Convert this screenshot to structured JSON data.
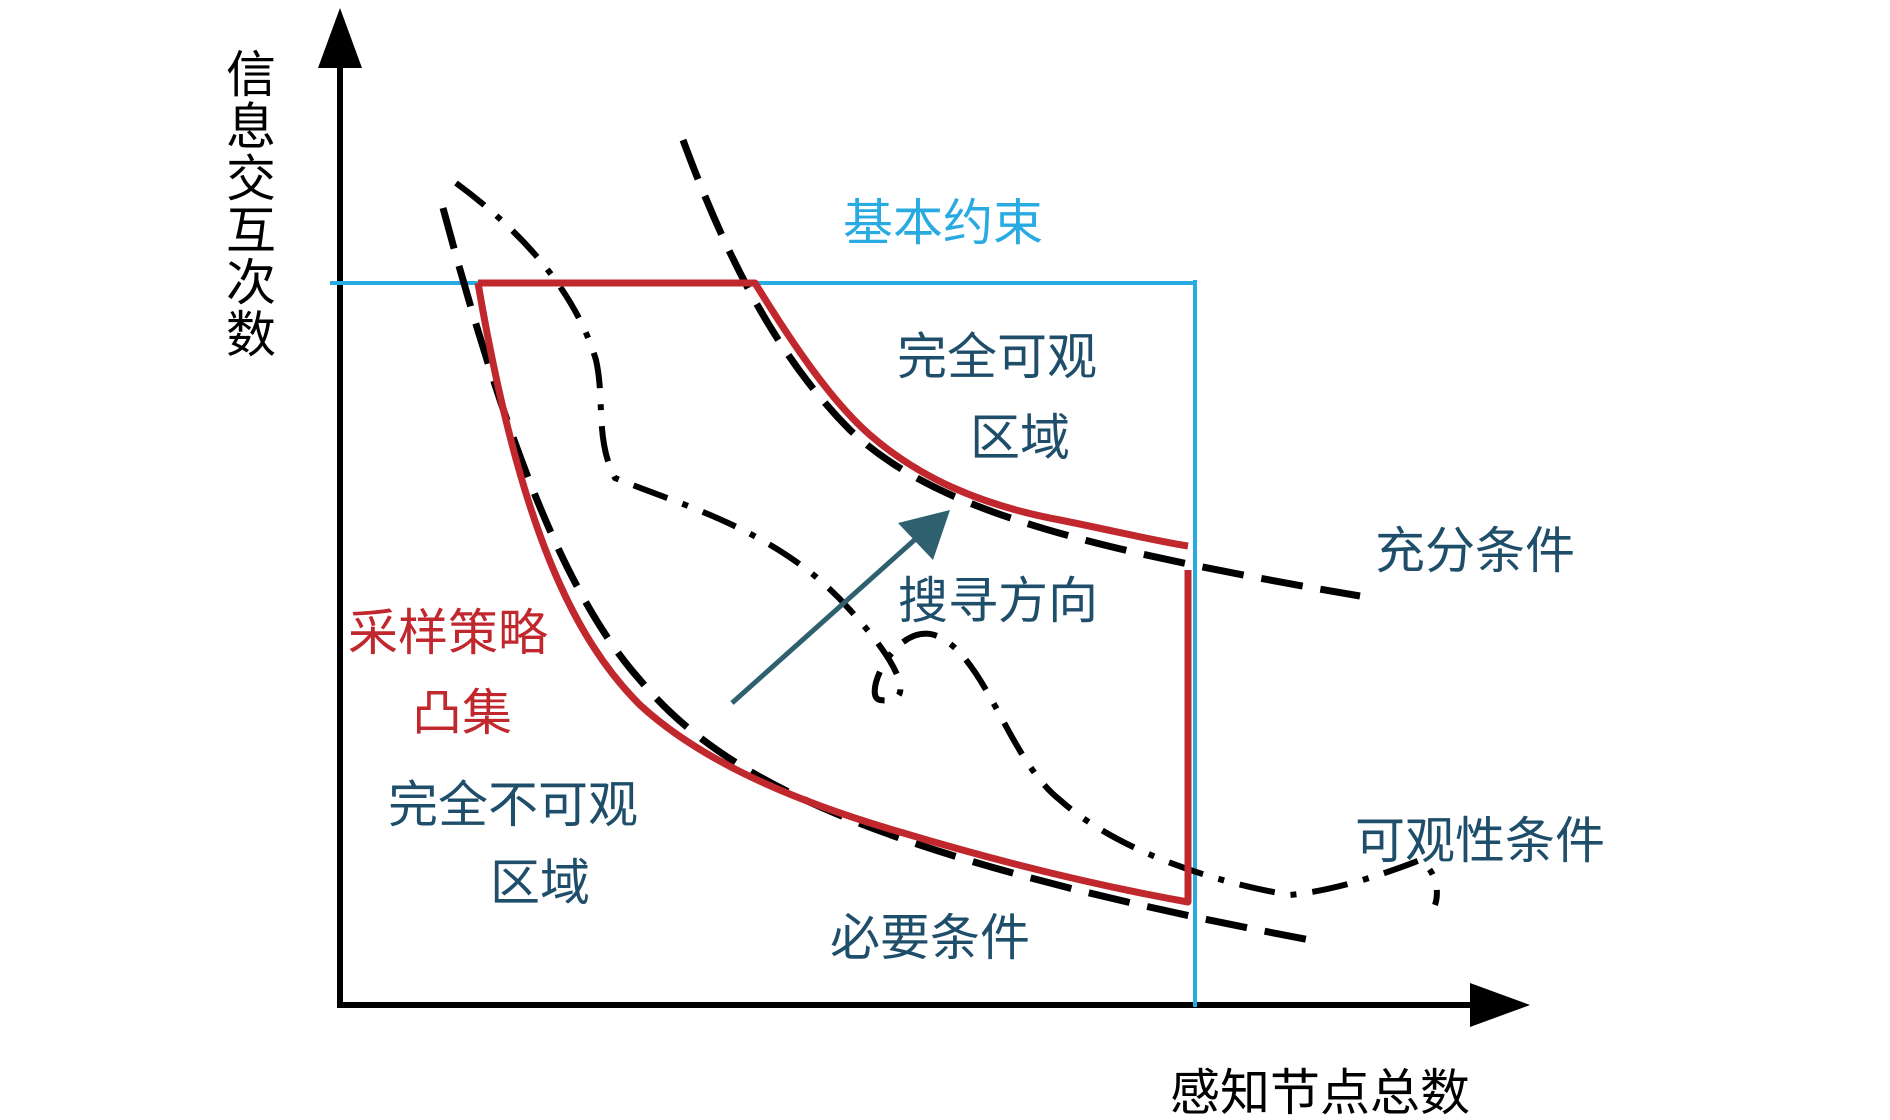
{
  "axes": {
    "y_label": "信息交互次数",
    "x_label": "感知节点总数"
  },
  "labels": {
    "basic_constraint": "基本约束",
    "fully_observable_line1": "完全可观",
    "fully_observable_line2": "区域",
    "sufficient_condition": "充分条件",
    "search_direction": "搜寻方向",
    "sampling_strategy_line1": "采样策略",
    "sampling_strategy_line2": "凸集",
    "fully_unobservable_line1": "完全不可观",
    "fully_unobservable_line2": "区域",
    "observability_condition": "可观性条件",
    "necessary_condition": "必要条件"
  },
  "colors": {
    "axis": "#000000",
    "constraint": "#29abe2",
    "convex_set": "#c0282d",
    "curves": "#000000",
    "arrow": "#2f6070",
    "text_dark": "#1f4e6b",
    "text_blue": "#29abe2",
    "text_red": "#c0282d"
  }
}
